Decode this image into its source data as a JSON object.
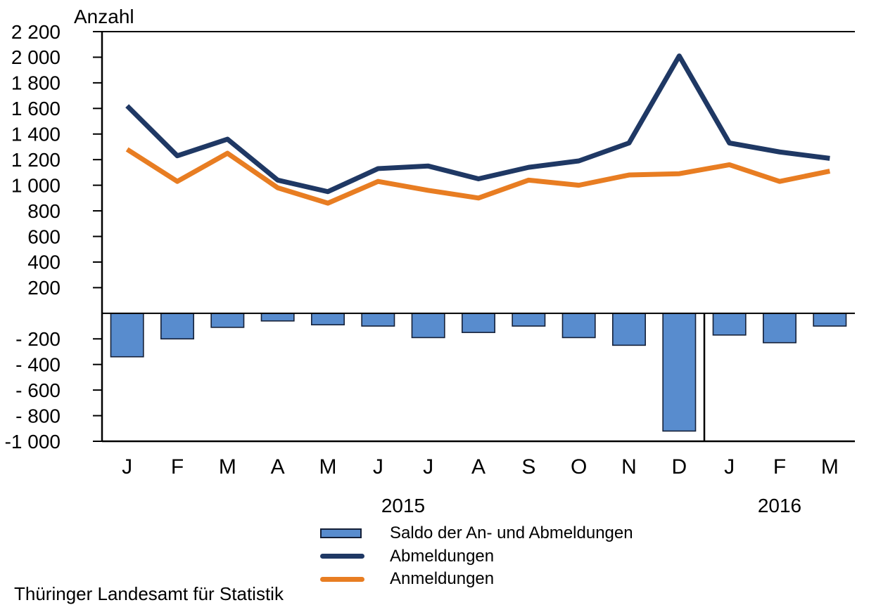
{
  "chart_data": {
    "type": "combo_bar_line",
    "title": "",
    "ylabel": "Anzahl",
    "xlabel": "",
    "categories": [
      "J",
      "F",
      "M",
      "A",
      "M",
      "J",
      "J",
      "A",
      "S",
      "O",
      "N",
      "D",
      "J",
      "F",
      "M"
    ],
    "year_groups": [
      {
        "label": "2015",
        "start": 0,
        "count": 12
      },
      {
        "label": "2016",
        "start": 12,
        "count": 3
      }
    ],
    "ylim": [
      -1000,
      2200
    ],
    "ytick_step": 200,
    "yticks": [
      {
        "value": 2200,
        "label": "2 200"
      },
      {
        "value": 2000,
        "label": "2 000"
      },
      {
        "value": 1800,
        "label": "1 800"
      },
      {
        "value": 1600,
        "label": "1 600"
      },
      {
        "value": 1400,
        "label": "1 400"
      },
      {
        "value": 1200,
        "label": "1 200"
      },
      {
        "value": 1000,
        "label": "1 000"
      },
      {
        "value": 800,
        "label": "800"
      },
      {
        "value": 600,
        "label": "600"
      },
      {
        "value": 400,
        "label": "400"
      },
      {
        "value": 200,
        "label": "200"
      },
      {
        "value": -200,
        "label": "- 200"
      },
      {
        "value": -400,
        "label": "- 400"
      },
      {
        "value": -600,
        "label": "- 600"
      },
      {
        "value": -800,
        "label": "- 800"
      },
      {
        "value": -1000,
        "label": "-1 000"
      }
    ],
    "series": [
      {
        "name": "Saldo der An- und Abmeldungen",
        "type": "bar",
        "color": "#588CCE",
        "border_color": "#152038",
        "values": [
          -340,
          -200,
          -110,
          -60,
          -90,
          -100,
          -190,
          -150,
          -100,
          -190,
          -250,
          -920,
          -170,
          -230,
          -100
        ]
      },
      {
        "name": "Abmeldungen",
        "type": "line",
        "color": "#1F3864",
        "values": [
          1620,
          1230,
          1360,
          1040,
          950,
          1130,
          1150,
          1050,
          1140,
          1190,
          1330,
          2010,
          1330,
          1260,
          1210
        ]
      },
      {
        "name": "Anmeldungen",
        "type": "line",
        "color": "#E87D22",
        "values": [
          1280,
          1030,
          1250,
          980,
          860,
          1030,
          960,
          900,
          1040,
          1000,
          1080,
          1090,
          1160,
          1030,
          1110
        ]
      }
    ],
    "separator_after_index": 11,
    "grid": false,
    "legend_position": "bottom"
  },
  "legend": {
    "items": [
      {
        "label": "Saldo der An- und Abmeldungen",
        "swatch": "bar"
      },
      {
        "label": "Abmeldungen",
        "swatch": "line-dark"
      },
      {
        "label": "Anmeldungen",
        "swatch": "line-orange"
      }
    ]
  },
  "footer": {
    "source": "Thüringer Landesamt für Statistik"
  }
}
